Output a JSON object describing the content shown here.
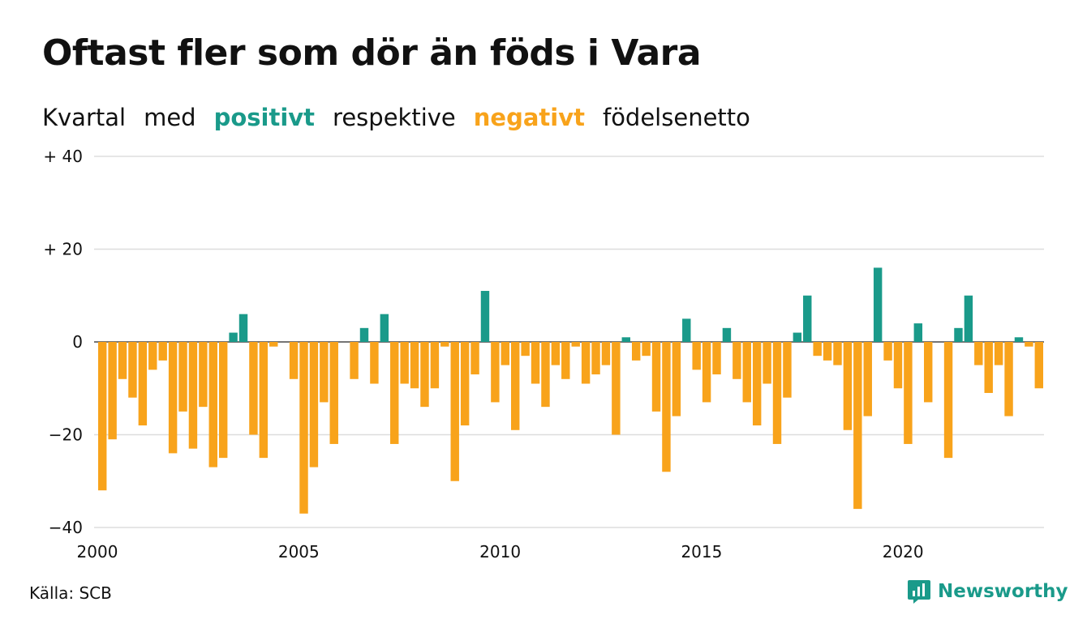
{
  "title": "Oftast fler som dör än föds i Vara",
  "subtitle": {
    "parts": [
      "Kvartal",
      "med",
      "positivt",
      "respektive",
      "negativt",
      "födelsenetto"
    ]
  },
  "colors": {
    "positive": "#1a9a8a",
    "negative": "#f8a31b",
    "grid": "#dddddd",
    "text": "#111111"
  },
  "chart_data": {
    "type": "bar",
    "ylim": [
      -40,
      40
    ],
    "yticks": [
      {
        "value": 40,
        "label": "+ 40"
      },
      {
        "value": 20,
        "label": "+ 20"
      },
      {
        "value": 0,
        "label": "0"
      },
      {
        "value": -20,
        "label": "−20"
      },
      {
        "value": -40,
        "label": "−40"
      }
    ],
    "xticks": [
      "2000",
      "2005",
      "2010",
      "2015",
      "2020"
    ],
    "xtick_years": [
      2000,
      2005,
      2010,
      2015,
      2020
    ],
    "grid": true,
    "legend": "none",
    "x_start": "2000 Q1",
    "values": [
      -32,
      -21,
      -8,
      -12,
      -18,
      -6,
      -4,
      -24,
      -15,
      -23,
      -14,
      -27,
      -25,
      2,
      6,
      -20,
      -25,
      -1,
      0,
      -8,
      -37,
      -27,
      -13,
      -22,
      0,
      -8,
      3,
      -9,
      6,
      -22,
      -9,
      -10,
      -14,
      -10,
      -1,
      -30,
      -18,
      -7,
      11,
      -13,
      -5,
      -19,
      -3,
      -9,
      -14,
      -5,
      -8,
      -1,
      -9,
      -7,
      -5,
      -20,
      1,
      -4,
      -3,
      -15,
      -28,
      -16,
      5,
      -6,
      -13,
      -7,
      3,
      -8,
      -13,
      -18,
      -9,
      -22,
      -12,
      2,
      10,
      -3,
      -4,
      -5,
      -19,
      -36,
      -16,
      16,
      -4,
      -10,
      -22,
      4,
      -13,
      0,
      -25,
      3,
      10,
      -5,
      -11,
      -5,
      -16,
      1,
      -1,
      -10
    ]
  },
  "footer": {
    "source": "Källa: SCB",
    "brand": "Newsworthy"
  }
}
